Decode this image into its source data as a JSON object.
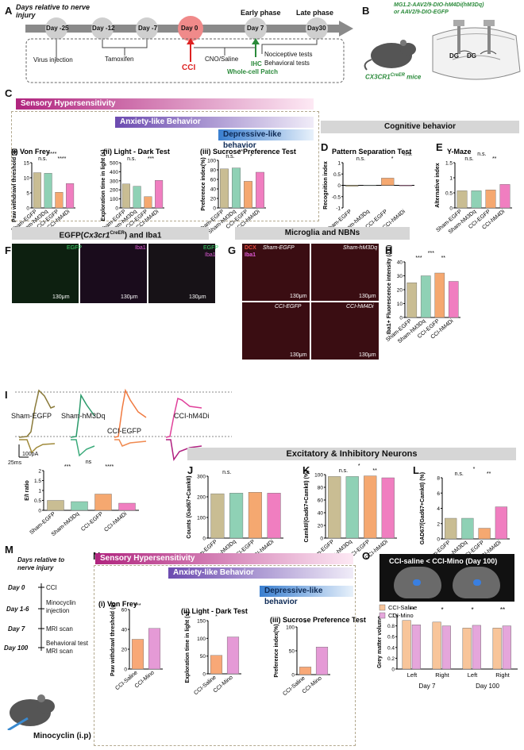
{
  "panelA": {
    "letter": "A",
    "title": "Days relative to nerve injury",
    "days": [
      "Day -25",
      "Day -12",
      "Day -7",
      "Day 0",
      "Day 7",
      "Day30"
    ],
    "early": "Early phase",
    "late": "Late phase",
    "virus": "Virus injection",
    "tamoxifen": "Tamoxifen",
    "cno": "CNO/Saline",
    "cci": "CCI",
    "ihc": "IHC",
    "patch": "Whole-cell Patch",
    "noci": "Nociceptive tests",
    "behav": "Behavioral tests"
  },
  "panelB": {
    "letter": "B",
    "virus": "MG1.2-AAV2/9-DIO-hM4Di(hM3Dq)",
    "virus2": "or AAV2/9-DIO-EGFP",
    "mouse": "CX3CR1",
    "mouse_sup": "CreER",
    "mouse_suffix": " mice",
    "dg": "DG",
    "dg2": "DG"
  },
  "panelC": {
    "letter": "C",
    "sensory": "Sensory Hypersensitivity",
    "anxiety": "Anxiety-like Behavior",
    "depressive": "Depressive-like behavior",
    "cognitive": "Cognitive behavior"
  },
  "groups4": [
    "Sham-EGFP",
    "Sham-hM3Dq",
    "CCI-EGFP",
    "CCI-hM4Di"
  ],
  "groups2": [
    "CCI-Saline",
    "CCI-Mino"
  ],
  "colors": {
    "sham_egfp": "#c9bd93",
    "sham_hm3dq": "#8fd1b5",
    "cci_egfp": "#f5a870",
    "cci_hm4di": "#f07ec0",
    "magenta": "#b0247e",
    "purple": "#7a52b8",
    "blue": "#5a8fd0"
  },
  "chart_data": [
    {
      "id": "Ci",
      "roman": "(i)",
      "title": "Von Frey",
      "type": "bar",
      "ylabel": "Paw withdrawl threshold (g)",
      "ylim": [
        0,
        15
      ],
      "ticks": [
        0,
        5,
        10,
        15
      ],
      "values": [
        11.7,
        11.5,
        5.2,
        8.1
      ],
      "sig": [
        "n.s.",
        "****",
        "****"
      ]
    },
    {
      "id": "Cii",
      "roman": "(ii)",
      "title": "Light - Dark Test",
      "type": "bar",
      "ylabel": "Exploration time in light (s)",
      "ylim": [
        0,
        500
      ],
      "ticks": [
        0,
        100,
        200,
        300,
        400,
        500
      ],
      "values": [
        265,
        240,
        125,
        305
      ],
      "sig": [
        "n.s.",
        "*",
        "***"
      ]
    },
    {
      "id": "Ciii",
      "roman": "(iii)",
      "title": "Sucrose Preference Test",
      "type": "bar",
      "ylabel": "Preference index(%)",
      "ylim": [
        0,
        100
      ],
      "ticks": [
        0,
        20,
        40,
        60,
        80,
        100
      ],
      "values": [
        82,
        84,
        56,
        75
      ],
      "sig": [
        "n.s.",
        "**",
        "*"
      ]
    },
    {
      "id": "D",
      "title": "Pattern Separation Test",
      "type": "bar",
      "ylabel": "Recognition index",
      "ylim": [
        -1.0,
        1.0
      ],
      "ticks": [
        -1.0,
        -0.5,
        0.0,
        0.5,
        1.0
      ],
      "values": [
        -0.05,
        0.0,
        0.32,
        -0.03
      ],
      "sig": [
        "n.s.",
        "*",
        "*",
        "n.s."
      ]
    },
    {
      "id": "E",
      "title": "Y-Maze",
      "type": "bar",
      "ylabel": "Alternative index",
      "ylim": [
        0,
        1.5
      ],
      "ticks": [
        0.0,
        0.5,
        1.0,
        1.5
      ],
      "values": [
        0.57,
        0.57,
        0.6,
        0.78
      ],
      "sig": [
        "n.s.",
        "n.s.",
        "**"
      ]
    },
    {
      "id": "H",
      "type": "bar",
      "ylabel": "Iba1+ Fluorescence intensity (a.u)",
      "ylim": [
        0,
        40
      ],
      "ticks": [
        0,
        10,
        20,
        30,
        40
      ],
      "values": [
        25,
        30,
        32,
        26
      ],
      "sig": [
        "***",
        "***",
        "**"
      ]
    },
    {
      "id": "I",
      "type": "bar",
      "ylabel": "E/I ratio",
      "ylim": [
        0,
        2.0
      ],
      "ticks": [
        0.0,
        0.5,
        1.0,
        1.5,
        2.0
      ],
      "values": [
        0.5,
        0.44,
        0.82,
        0.36
      ],
      "sig": [
        "***",
        "ns",
        "****"
      ]
    },
    {
      "id": "J",
      "type": "bar",
      "ylabel": "Counts (Gad67+CamkII)",
      "ylim": [
        0,
        300
      ],
      "ticks": [
        0,
        100,
        200,
        300
      ],
      "values": [
        215,
        218,
        222,
        218
      ],
      "sig": [
        "n.s."
      ]
    },
    {
      "id": "K",
      "type": "bar",
      "ylabel": "CamkII/(Gad67+CamkII) (%)",
      "ylim": [
        0,
        100
      ],
      "ticks": [
        0,
        20,
        40,
        60,
        80,
        100
      ],
      "values": [
        97,
        97,
        98,
        95
      ],
      "sig": [
        "n.s.",
        "*",
        "**"
      ]
    },
    {
      "id": "L",
      "type": "bar",
      "ylabel": "GAD67/(Gad67+CamkII) (%)",
      "ylim": [
        0,
        8
      ],
      "ticks": [
        0,
        2,
        4,
        6,
        8
      ],
      "values": [
        2.7,
        2.7,
        1.4,
        4.2
      ],
      "sig": [
        "n.s.",
        "*",
        "**"
      ]
    },
    {
      "id": "Ni",
      "roman": "(i)",
      "title": "Von Frey",
      "type": "bar",
      "ylabel": "Paw withdrawl threshold (g)",
      "ylim": [
        0,
        60
      ],
      "ticks": [
        0,
        20,
        40,
        60
      ],
      "values": [
        30,
        41
      ],
      "sig": [
        "***"
      ]
    },
    {
      "id": "Nii",
      "roman": "(ii)",
      "title": "Light - Dark Test",
      "type": "bar",
      "ylabel": "Exploration time in light (s)",
      "ylim": [
        0,
        150
      ],
      "ticks": [
        0,
        50,
        100,
        150
      ],
      "values": [
        52,
        104
      ],
      "sig": [
        "*"
      ]
    },
    {
      "id": "Niii",
      "roman": "(iii)",
      "title": "Sucrose Preference Test",
      "type": "bar",
      "ylabel": "Preference index(%)",
      "ylim": [
        0,
        100
      ],
      "ticks": [
        0,
        50,
        100
      ],
      "values": [
        16,
        58
      ],
      "sig": [
        "*"
      ]
    },
    {
      "id": "O",
      "type": "bar",
      "ylabel": "Grey matter volume",
      "ylim": [
        0.0,
        1.0
      ],
      "ticks": [
        0.0,
        0.2,
        0.4,
        0.6,
        0.8,
        1.0
      ],
      "categories": [
        "Left",
        "Right",
        "Left",
        "Right"
      ],
      "series": [
        {
          "name": "CCI-Saline",
          "values": [
            0.9,
            0.87,
            0.76,
            0.76
          ]
        },
        {
          "name": "CCI-Mino",
          "values": [
            0.82,
            0.8,
            0.81,
            0.8
          ]
        }
      ],
      "sig": [
        "**",
        "*",
        "*",
        "**"
      ],
      "groups": [
        "Day 7",
        "Day 100"
      ]
    }
  ],
  "panelF": {
    "letter": "F",
    "title": "EGFP(",
    "title_it": "Cx3cr1",
    "title_sup": "CreER",
    "title_end": ") and Iba1",
    "labels": [
      "EGFP",
      "Iba1",
      "EGFP",
      "Iba1"
    ],
    "scale": [
      "130μm",
      "130μm",
      "130μm"
    ]
  },
  "panelG": {
    "letter": "G",
    "title": "Microglia and NBNs",
    "dcx": "DCX",
    "iba1": "Iba1",
    "labels": [
      "Sham-EGFP",
      "Sham-hM3Dq",
      "CCI-EGFP",
      "CCI-hM4Di"
    ],
    "scale": "130μm"
  },
  "panelH": {
    "letter": "H"
  },
  "panelI": {
    "letter": "I",
    "traces": [
      "Sham-EGFP",
      "Sham-hM3Dq",
      "CCI-EGFP",
      "CCI-hM4Di"
    ],
    "scale_y": "100pA",
    "scale_x": "25ms"
  },
  "panelJKL": {
    "title": "Excitatory & Inhibitory Neurons",
    "j": "J",
    "k": "K",
    "l": "L"
  },
  "panelM": {
    "letter": "M",
    "title": "Days relative to nerve injury",
    "rows": [
      {
        "day": "Day 0",
        "ev": "CCI"
      },
      {
        "day": "Day 1-6",
        "ev": "Minocyclin injection"
      },
      {
        "day": "Day 7",
        "ev": "MRI scan"
      },
      {
        "day": "Day 100",
        "ev": "Behavioral test MRI scan"
      }
    ],
    "mouse": "Minocyclin (i.p)"
  },
  "panelN": {
    "letter": "N",
    "sensory": "Sensory Hypersensitivity",
    "anxiety": "Anxiety-like Behavior",
    "depressive": "Depressive-like behavior"
  },
  "panelO": {
    "letter": "O",
    "mri": "CCI-saline < CCI-Mino (Day 100)",
    "legend": [
      "CCI-Saline",
      "CCI-Mino"
    ]
  }
}
